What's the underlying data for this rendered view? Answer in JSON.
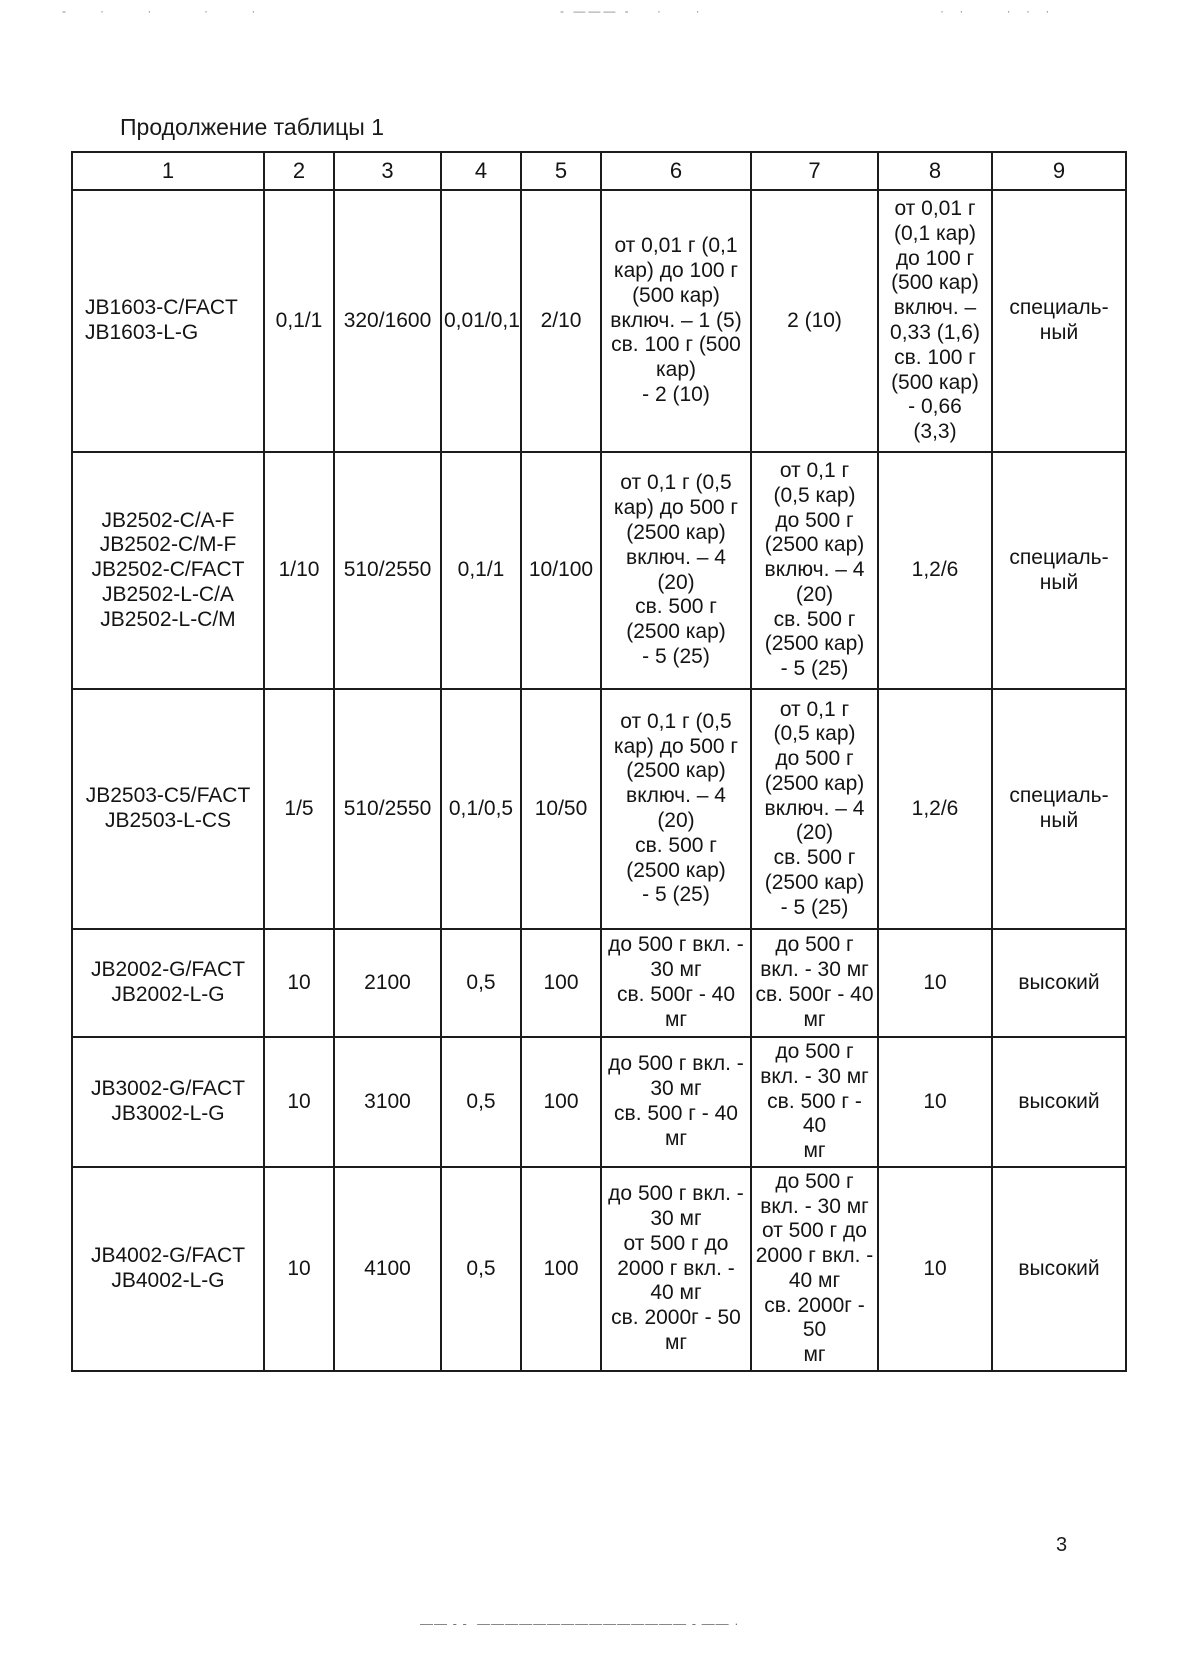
{
  "title": "Продолжение таблицы 1",
  "page_number": "3",
  "artifacts": {
    "top_left": "-   ·    ·     ·    ·",
    "top_mid": "- ——— -    ·     ·",
    "top_right": "· ·    · · ·",
    "bottom_line": "—— - -  ——————————————— - —— ·"
  },
  "table": {
    "columns": [
      "1",
      "2",
      "3",
      "4",
      "5",
      "6",
      "7",
      "8",
      "9"
    ],
    "rows": [
      {
        "cells": [
          {
            "lines": [
              "JB1603-C/FACT",
              "JB1603-L-G"
            ]
          },
          {
            "lines": [
              "0,1/1"
            ]
          },
          {
            "lines": [
              "320/1600"
            ]
          },
          {
            "lines": [
              "0,01/0,1"
            ]
          },
          {
            "lines": [
              "2/10"
            ]
          },
          {
            "lines": [
              "от 0,01 г (0,1",
              "кар) до 100 г",
              "(500 кар)",
              "включ. – 1 (5)",
              "св. 100 г (500",
              "кар)",
              "- 2 (10)"
            ]
          },
          {
            "lines": [
              "2 (10)"
            ]
          },
          {
            "lines": [
              "от 0,01 г",
              "(0,1 кар)",
              "до 100 г",
              "(500 кар)",
              "включ. –",
              "0,33 (1,6)",
              "св. 100 г",
              "(500 кар)",
              "- 0,66",
              "(3,3)"
            ]
          },
          {
            "lines": [
              "специаль-",
              "ный"
            ]
          }
        ]
      },
      {
        "cells": [
          {
            "lines": [
              "JB2502-C/A-F",
              "JB2502-C/M-F",
              "JB2502-C/FACT",
              "JB2502-L-C/A",
              "JB2502-L-C/M"
            ]
          },
          {
            "lines": [
              "1/10"
            ]
          },
          {
            "lines": [
              "510/2550"
            ]
          },
          {
            "lines": [
              "0,1/1"
            ]
          },
          {
            "lines": [
              "10/100"
            ]
          },
          {
            "lines": [
              "от 0,1 г (0,5",
              "кар) до 500 г",
              "(2500 кар)",
              "включ. – 4",
              "(20)",
              "св. 500 г",
              "(2500 кар)",
              "- 5 (25)"
            ]
          },
          {
            "lines": [
              "от 0,1 г",
              "(0,5 кар)",
              "до 500 г",
              "(2500 кар)",
              "включ. – 4",
              "(20)",
              "св. 500 г",
              "(2500 кар)",
              "- 5 (25)"
            ]
          },
          {
            "lines": [
              "1,2/6"
            ]
          },
          {
            "lines": [
              "специаль-",
              "ный"
            ]
          }
        ]
      },
      {
        "cells": [
          {
            "lines": [
              "JB2503-C5/FACT",
              "JB2503-L-CS"
            ]
          },
          {
            "lines": [
              "1/5"
            ]
          },
          {
            "lines": [
              "510/2550"
            ]
          },
          {
            "lines": [
              "0,1/0,5"
            ]
          },
          {
            "lines": [
              "10/50"
            ]
          },
          {
            "lines": [
              "от 0,1 г (0,5",
              "кар) до 500 г",
              "(2500 кар)",
              "включ. – 4",
              "(20)",
              "св. 500 г",
              "(2500 кар)",
              "- 5 (25)"
            ]
          },
          {
            "lines": [
              "от 0,1 г",
              "(0,5 кар)",
              "до 500 г",
              "(2500 кар)",
              "включ. – 4",
              "(20)",
              "св. 500 г",
              "(2500 кар)",
              "- 5 (25)"
            ]
          },
          {
            "lines": [
              "1,2/6"
            ]
          },
          {
            "lines": [
              "специаль-",
              "ный"
            ]
          }
        ]
      },
      {
        "cells": [
          {
            "lines": [
              "JB2002-G/FACT",
              "JB2002-L-G"
            ]
          },
          {
            "lines": [
              "10"
            ]
          },
          {
            "lines": [
              "2100"
            ]
          },
          {
            "lines": [
              "0,5"
            ]
          },
          {
            "lines": [
              "100"
            ]
          },
          {
            "lines": [
              "до 500 г вкл. -",
              "30 мг",
              "св. 500г - 40 мг"
            ]
          },
          {
            "lines": [
              "до 500 г",
              "вкл. - 30 мг",
              "св. 500г - 40",
              "мг"
            ]
          },
          {
            "lines": [
              "10"
            ]
          },
          {
            "lines": [
              "высокий"
            ]
          }
        ]
      },
      {
        "cells": [
          {
            "lines": [
              "JB3002-G/FACT",
              "JB3002-L-G"
            ]
          },
          {
            "lines": [
              "10"
            ]
          },
          {
            "lines": [
              "3100"
            ]
          },
          {
            "lines": [
              "0,5"
            ]
          },
          {
            "lines": [
              "100"
            ]
          },
          {
            "lines": [
              "до 500 г вкл. -",
              "30 мг",
              "св. 500 г - 40",
              "мг"
            ]
          },
          {
            "lines": [
              "до 500 г",
              "вкл. - 30 мг",
              "св. 500 г - 40",
              "мг"
            ]
          },
          {
            "lines": [
              "10"
            ]
          },
          {
            "lines": [
              "высокий"
            ]
          }
        ]
      },
      {
        "cells": [
          {
            "lines": [
              "JB4002-G/FACT",
              "JB4002-L-G"
            ]
          },
          {
            "lines": [
              "10"
            ]
          },
          {
            "lines": [
              "4100"
            ]
          },
          {
            "lines": [
              "0,5"
            ]
          },
          {
            "lines": [
              "100"
            ]
          },
          {
            "lines": [
              "до 500 г вкл. -",
              "30 мг",
              "от 500 г до",
              "2000 г вкл.  -",
              "40 мг",
              "св. 2000г - 50",
              "мг"
            ]
          },
          {
            "lines": [
              "до 500 г",
              "вкл. - 30 мг",
              "от 500 г до",
              "2000 г вкл.  -",
              "40 мг",
              "св. 2000г - 50",
              "мг"
            ]
          },
          {
            "lines": [
              "10"
            ]
          },
          {
            "lines": [
              "высокий"
            ]
          }
        ]
      }
    ]
  }
}
